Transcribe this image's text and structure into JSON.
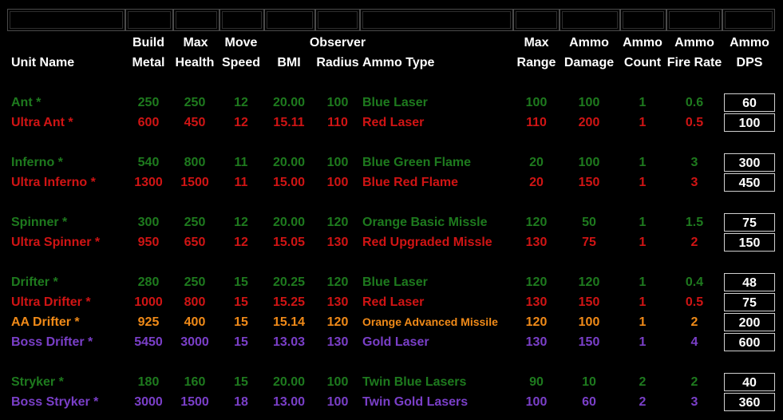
{
  "header": {
    "unit_name": "Unit Name",
    "build_metal": [
      "Build",
      "Metal"
    ],
    "max_health": [
      "Max",
      "Health"
    ],
    "move_speed": [
      "Move",
      "Speed"
    ],
    "bmi": "BMI",
    "observer": "Observer",
    "radius": "Radius",
    "ammo_type": "Ammo Type",
    "max_range": [
      "Max",
      "Range"
    ],
    "ammo_damage": [
      "Ammo",
      "Damage"
    ],
    "ammo_count": [
      "Ammo",
      "Count"
    ],
    "ammo_fire_rate": [
      "Ammo",
      "Fire Rate"
    ],
    "ammo_dps": [
      "Ammo",
      "DPS"
    ]
  },
  "colors": {
    "green": "#1e7a1e",
    "red": "#d01414",
    "orange": "#f08a18",
    "purple": "#7a3fc8"
  },
  "rows": [
    {
      "name": "Ant *",
      "metal": "250",
      "health": "250",
      "speed": "12",
      "bmi": "20.00",
      "radius": "100",
      "ammo": "Blue Laser",
      "range": "100",
      "damage": "100",
      "count": "1",
      "rate": "0.6",
      "dps": "60",
      "color": "green"
    },
    {
      "name": "Ultra Ant *",
      "metal": "600",
      "health": "450",
      "speed": "12",
      "bmi": "15.11",
      "radius": "110",
      "ammo": "Red Laser",
      "range": "110",
      "damage": "200",
      "count": "1",
      "rate": "0.5",
      "dps": "100",
      "color": "red"
    },
    {
      "name": "Inferno *",
      "metal": "540",
      "health": "800",
      "speed": "11",
      "bmi": "20.00",
      "radius": "100",
      "ammo": "Blue Green Flame",
      "range": "20",
      "damage": "100",
      "count": "1",
      "rate": "3",
      "dps": "300",
      "color": "green"
    },
    {
      "name": "Ultra Inferno *",
      "metal": "1300",
      "health": "1500",
      "speed": "11",
      "bmi": "15.00",
      "radius": "100",
      "ammo": "Blue Red Flame",
      "range": "20",
      "damage": "150",
      "count": "1",
      "rate": "3",
      "dps": "450",
      "color": "red"
    },
    {
      "name": "Spinner *",
      "metal": "300",
      "health": "250",
      "speed": "12",
      "bmi": "20.00",
      "radius": "120",
      "ammo": "Orange Basic Missle",
      "range": "120",
      "damage": "50",
      "count": "1",
      "rate": "1.5",
      "dps": "75",
      "color": "green"
    },
    {
      "name": "Ultra Spinner *",
      "metal": "950",
      "health": "650",
      "speed": "12",
      "bmi": "15.05",
      "radius": "130",
      "ammo": "Red Upgraded Missle",
      "range": "130",
      "damage": "75",
      "count": "1",
      "rate": "2",
      "dps": "150",
      "color": "red"
    },
    {
      "name": "Drifter *",
      "metal": "280",
      "health": "250",
      "speed": "15",
      "bmi": "20.25",
      "radius": "120",
      "ammo": "Blue Laser",
      "range": "120",
      "damage": "120",
      "count": "1",
      "rate": "0.4",
      "dps": "48",
      "color": "green"
    },
    {
      "name": "Ultra Drifter *",
      "metal": "1000",
      "health": "800",
      "speed": "15",
      "bmi": "15.25",
      "radius": "130",
      "ammo": "Red Laser",
      "range": "130",
      "damage": "150",
      "count": "1",
      "rate": "0.5",
      "dps": "75",
      "color": "red"
    },
    {
      "name": "AA Drifter *",
      "metal": "925",
      "health": "400",
      "speed": "15",
      "bmi": "15.14",
      "radius": "120",
      "ammo": "Orange Advanced Missile",
      "range": "120",
      "damage": "100",
      "count": "1",
      "rate": "2",
      "dps": "200",
      "color": "orange"
    },
    {
      "name": "Boss Drifter *",
      "metal": "5450",
      "health": "3000",
      "speed": "15",
      "bmi": "13.03",
      "radius": "130",
      "ammo": "Gold Laser",
      "range": "130",
      "damage": "150",
      "count": "1",
      "rate": "4",
      "dps": "600",
      "color": "purple"
    },
    {
      "name": "Stryker *",
      "metal": "180",
      "health": "160",
      "speed": "15",
      "bmi": "20.00",
      "radius": "100",
      "ammo": "Twin Blue Lasers",
      "range": "90",
      "damage": "10",
      "count": "2",
      "rate": "2",
      "dps": "40",
      "color": "green"
    },
    {
      "name": "Boss Stryker *",
      "metal": "3000",
      "health": "1500",
      "speed": "18",
      "bmi": "13.00",
      "radius": "100",
      "ammo": "Twin Gold Lasers",
      "range": "100",
      "damage": "60",
      "count": "2",
      "rate": "3",
      "dps": "360",
      "color": "purple"
    }
  ]
}
